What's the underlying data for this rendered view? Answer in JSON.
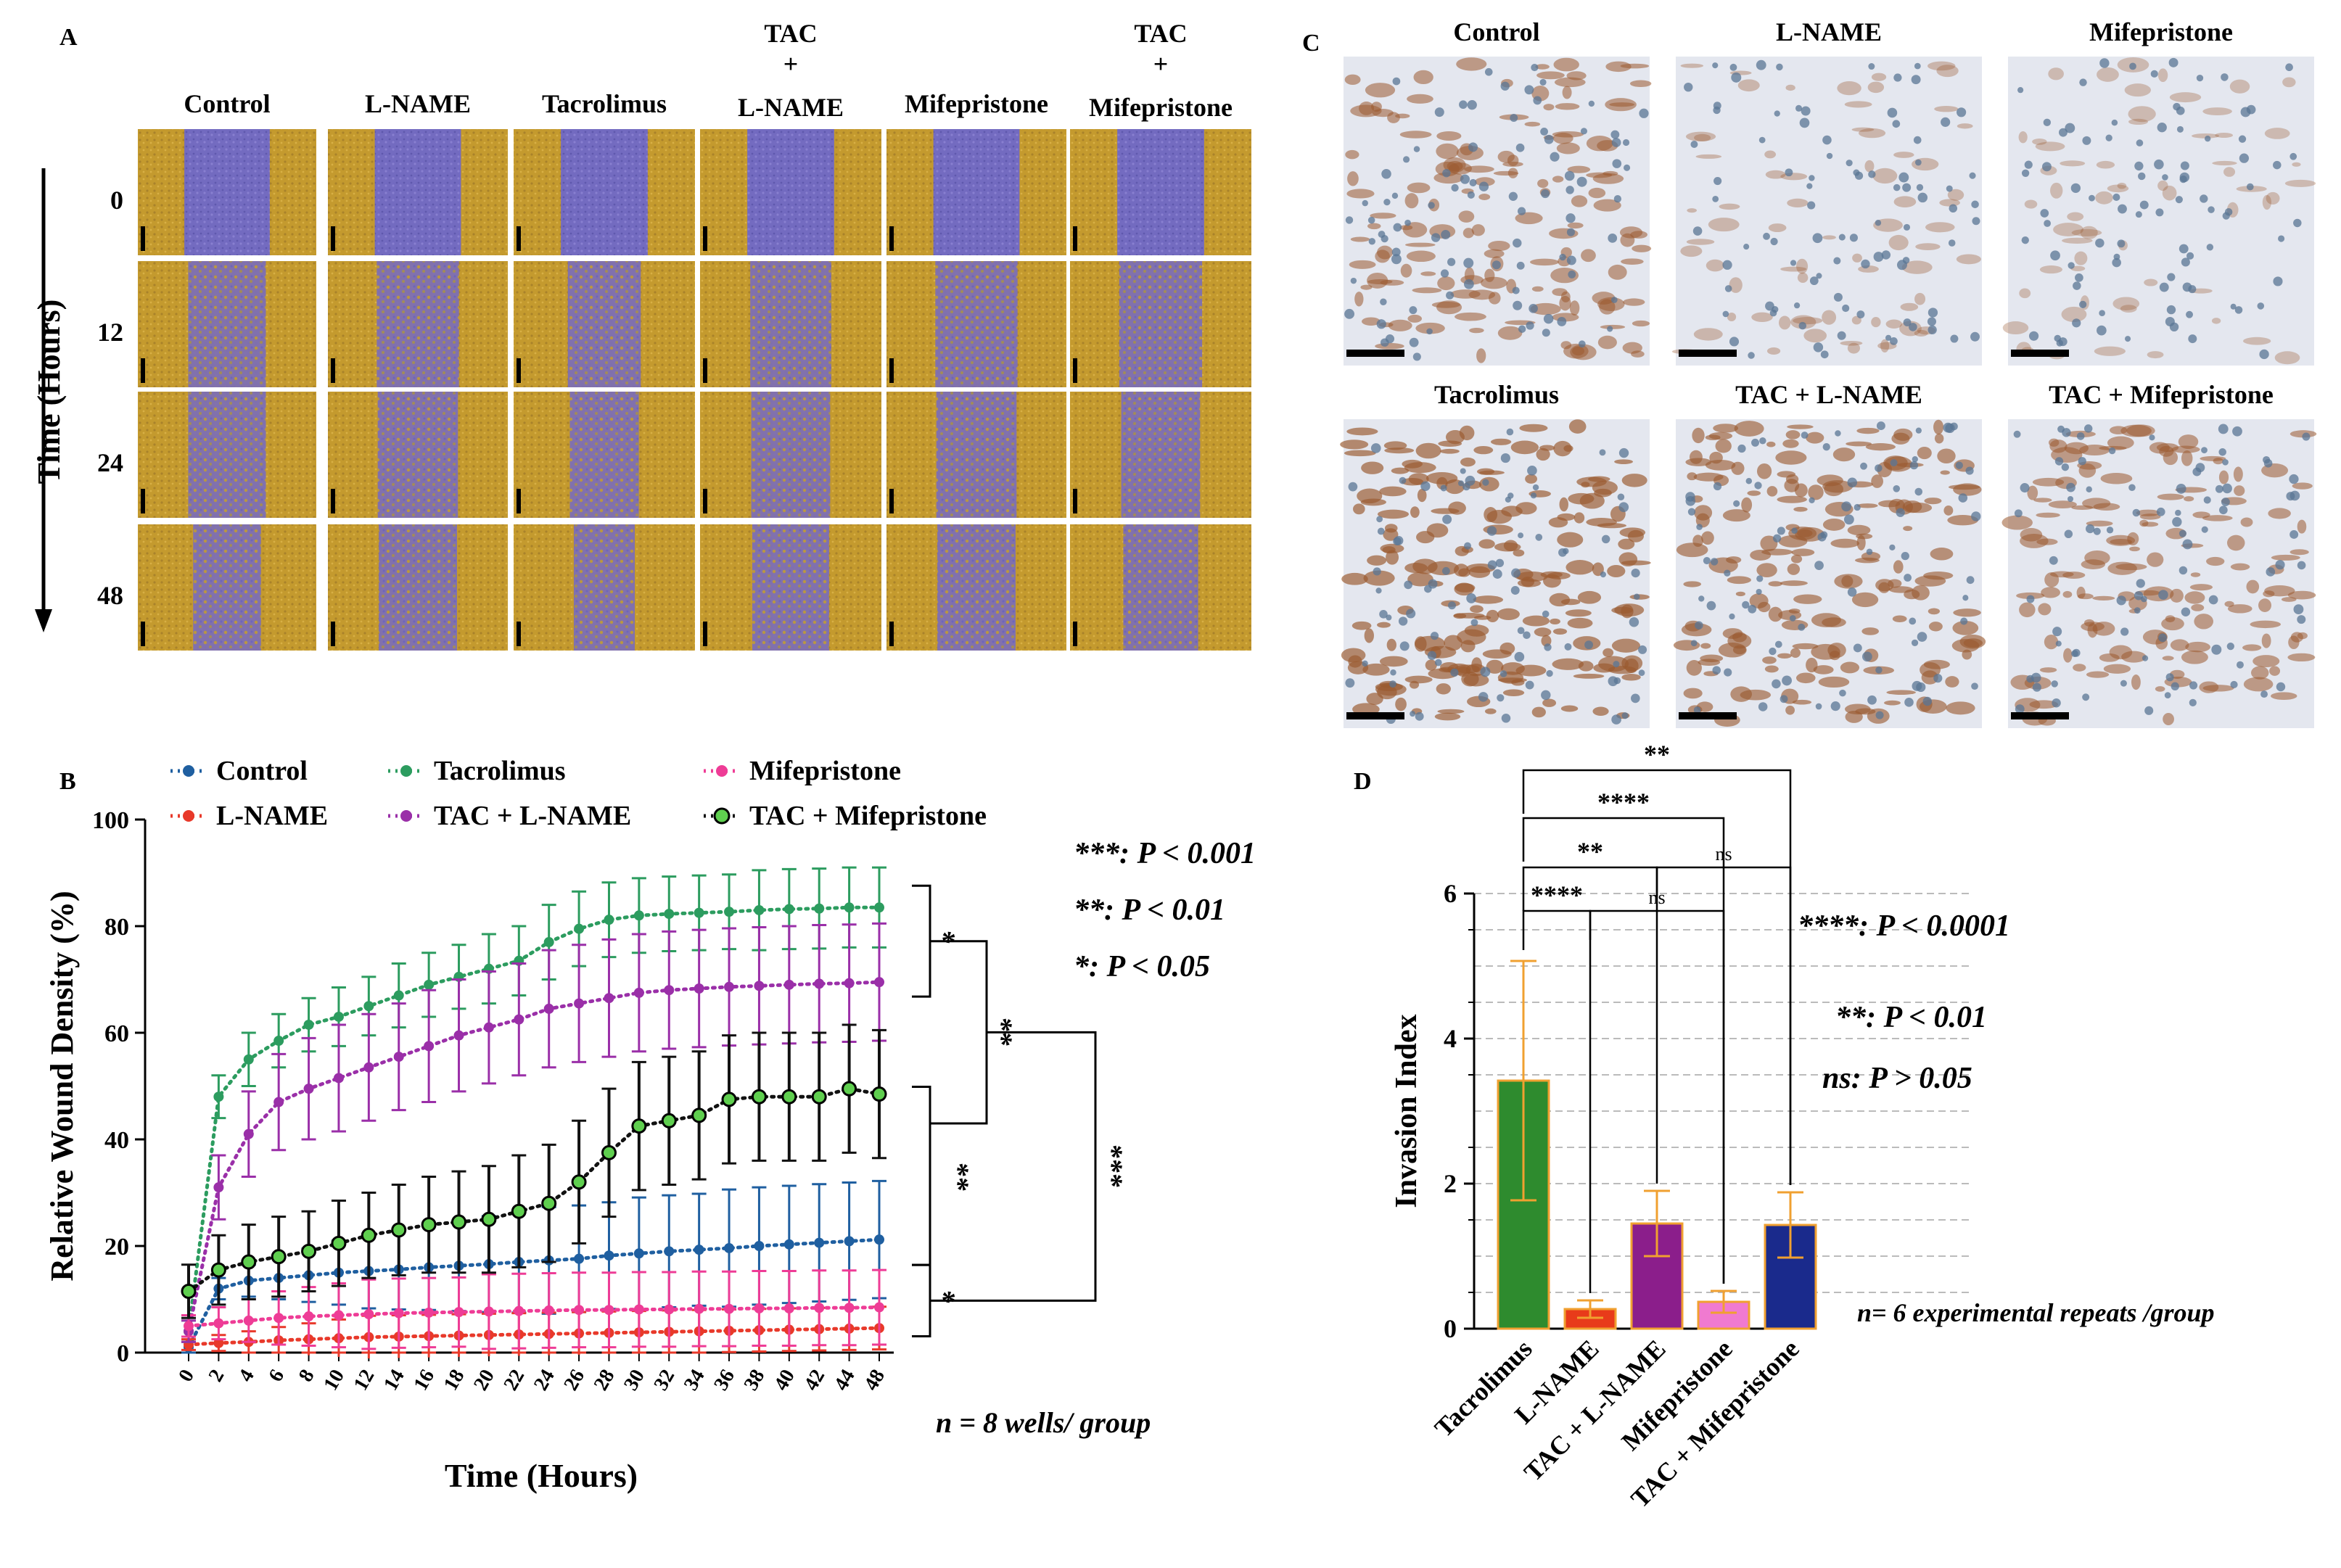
{
  "colors": {
    "scratch_bg": "#c49a2e",
    "scratch_wound": "#6f68c8",
    "ihc_bg": "#dfe3ec",
    "control": "#1f5fa0",
    "lname": "#e8392a",
    "tacrolimus": "#2c9c5f",
    "tac_lname": "#9a2fa8",
    "mifepristone": "#ee3c96",
    "tac_mife": "#111111"
  },
  "panel_a": {
    "label": "A",
    "columns": [
      {
        "line1": "Control",
        "line2": "",
        "line3": ""
      },
      {
        "line1": "L-NAME",
        "line2": "",
        "line3": ""
      },
      {
        "line1": "Tacrolimus",
        "line2": "",
        "line3": ""
      },
      {
        "line1": "TAC",
        "line2": "+",
        "line3": "L-NAME"
      },
      {
        "line1": "Mifepristone",
        "line2": "",
        "line3": ""
      },
      {
        "line1": "TAC",
        "line2": "+",
        "line3": "Mifepristone"
      }
    ],
    "rows": [
      "0",
      "12",
      "24",
      "48"
    ],
    "axis_title": "Time (Hours)",
    "wound_fraction": [
      [
        0.78,
        0.7,
        0.7,
        0.6
      ],
      [
        0.78,
        0.74,
        0.72,
        0.7
      ],
      [
        0.78,
        0.64,
        0.6,
        0.52
      ],
      [
        0.78,
        0.72,
        0.7,
        0.68
      ],
      [
        0.78,
        0.74,
        0.72,
        0.7
      ],
      [
        0.78,
        0.74,
        0.7,
        0.66
      ]
    ]
  },
  "panel_c": {
    "label": "C",
    "images": [
      {
        "title": "Control",
        "stain": 0.6
      },
      {
        "title": "L-NAME",
        "stain": 0.2
      },
      {
        "title": "Mifepristone",
        "stain": 0.15
      },
      {
        "title": "Tacrolimus",
        "stain": 0.85
      },
      {
        "title": "TAC + L-NAME",
        "stain": 0.75
      },
      {
        "title": "TAC + Mifepristone",
        "stain": 0.6
      }
    ]
  },
  "chart_data": [
    {
      "panel": "B",
      "type": "line",
      "xlabel": "Time (Hours)",
      "ylabel": "Relative Wound Density (%)",
      "x": [
        0,
        2,
        4,
        6,
        8,
        10,
        12,
        14,
        16,
        18,
        20,
        22,
        24,
        26,
        28,
        30,
        32,
        34,
        36,
        38,
        40,
        42,
        44,
        48
      ],
      "ylim": [
        0,
        100
      ],
      "yticks": [
        0,
        20,
        40,
        60,
        80,
        100
      ],
      "series": [
        {
          "name": "Control",
          "color_key": "control",
          "values": [
            1,
            12,
            13.5,
            14,
            14.5,
            15,
            15.3,
            15.6,
            16,
            16.3,
            16.6,
            17,
            17.3,
            17.6,
            18.2,
            18.6,
            19,
            19.3,
            19.6,
            20,
            20.3,
            20.6,
            20.9,
            21.2
          ],
          "err": [
            1,
            2,
            3,
            4,
            5,
            6,
            7,
            7.5,
            8,
            8.5,
            9,
            9.5,
            10,
            10,
            10,
            10.5,
            10.5,
            10.5,
            11,
            11,
            11,
            11,
            11,
            11
          ]
        },
        {
          "name": "L-NAME",
          "color_key": "lname",
          "values": [
            1.5,
            1.8,
            2,
            2.3,
            2.5,
            2.7,
            2.9,
            3,
            3.1,
            3.2,
            3.3,
            3.4,
            3.5,
            3.6,
            3.7,
            3.8,
            3.9,
            4,
            4.1,
            4.2,
            4.3,
            4.4,
            4.5,
            4.6
          ],
          "err": [
            1,
            1.5,
            2,
            2.5,
            3,
            3.5,
            4,
            4,
            4,
            4,
            4,
            4,
            4,
            4,
            4,
            4,
            4,
            4,
            4,
            4,
            4,
            4,
            4,
            4
          ]
        },
        {
          "name": "Tacrolimus",
          "color_key": "tacrolimus",
          "values": [
            4,
            48,
            55,
            58.5,
            61.5,
            63,
            65,
            67,
            69,
            70.5,
            72,
            73.5,
            77,
            79.5,
            81.2,
            82,
            82.3,
            82.5,
            82.7,
            83,
            83.2,
            83.3,
            83.5,
            83.5
          ],
          "err": [
            2,
            4,
            5,
            5,
            5,
            5.5,
            5.5,
            6,
            6,
            6,
            6.5,
            6.5,
            7,
            7,
            7,
            7,
            7,
            7,
            7,
            7.5,
            7.5,
            7.5,
            7.5,
            7.5
          ]
        },
        {
          "name": "TAC + L-NAME",
          "color_key": "tac_lname",
          "values": [
            4,
            31,
            41,
            47,
            49.5,
            51.5,
            53.5,
            55.5,
            57.5,
            59.5,
            61,
            62.5,
            64.5,
            65.5,
            66.5,
            67.5,
            68,
            68.3,
            68.6,
            68.8,
            69,
            69.2,
            69.3,
            69.5
          ],
          "err": [
            2,
            6,
            8,
            9,
            9.5,
            10,
            10,
            10,
            10.5,
            10.5,
            10.5,
            10.5,
            11,
            11,
            11,
            11,
            11,
            11,
            11,
            11,
            11,
            11,
            11,
            11
          ]
        },
        {
          "name": "Mifepristone",
          "color_key": "mifepristone",
          "values": [
            5,
            5.5,
            6,
            6.5,
            6.8,
            7,
            7.2,
            7.4,
            7.5,
            7.6,
            7.7,
            7.8,
            7.9,
            8,
            8,
            8.1,
            8.1,
            8.2,
            8.2,
            8.3,
            8.3,
            8.4,
            8.4,
            8.5
          ],
          "err": [
            2,
            3,
            4,
            5,
            5.5,
            6,
            6.5,
            6.5,
            6.5,
            6.5,
            7,
            7,
            7,
            7,
            7,
            7,
            7,
            7,
            7,
            7,
            7,
            7,
            7,
            7
          ]
        },
        {
          "name": "TAC + Mifepristone",
          "color_key": "tac_mife",
          "values": [
            11.5,
            15.5,
            17,
            18,
            19,
            20.5,
            22,
            23,
            24,
            24.5,
            25,
            26.5,
            28,
            32,
            37.5,
            42.5,
            43.5,
            44.5,
            47.5,
            48,
            48,
            48,
            49.5,
            48.5
          ],
          "err": [
            5,
            6.5,
            7,
            7.5,
            7.5,
            8,
            8,
            8.5,
            9,
            9.5,
            10,
            10.5,
            11,
            11.5,
            12,
            12,
            12,
            12,
            12,
            12,
            12,
            12,
            12,
            12
          ]
        }
      ],
      "legend_order": [
        0,
        2,
        4,
        1,
        3,
        5
      ],
      "comparisons": [
        {
          "a": 2,
          "b": 3,
          "label": "*"
        },
        {
          "a": 3,
          "b": 5,
          "label": "**"
        },
        {
          "a": 5,
          "b": 0,
          "label": "*"
        },
        {
          "a": 2,
          "b": 5,
          "label": "**"
        },
        {
          "a": 5,
          "b": 4,
          "label": "***"
        }
      ],
      "sig_key": [
        "***: P < 0.001",
        "**: P < 0.01",
        "*: P < 0.05"
      ],
      "footnote": "n = 8 wells/ group"
    },
    {
      "panel": "D",
      "type": "bar",
      "ylabel": "Invasion Index",
      "categories": [
        "Tacrolimus",
        "L-NAME",
        "TAC + L-NAME",
        "Mifepristone",
        "TAC + Mifepristone"
      ],
      "values": [
        3.42,
        0.27,
        1.45,
        0.37,
        1.43
      ],
      "err": [
        1.65,
        0.12,
        0.45,
        0.15,
        0.45
      ],
      "color_keys": [
        "tacrolimus",
        "lname",
        "tac_lname",
        "mifepristone",
        "tac_mife_bar"
      ],
      "bar_colors": [
        "#2e8b2e",
        "#e83b1a",
        "#8b1e8b",
        "#f07ad0",
        "#1a2a8c"
      ],
      "ylim": [
        0,
        6
      ],
      "yticks": [
        0,
        2,
        4,
        6
      ],
      "brackets": [
        {
          "a": 0,
          "b": 1,
          "label": "****",
          "level": 0
        },
        {
          "a": 1,
          "b": 3,
          "label": "ns",
          "level": 0
        },
        {
          "a": 0,
          "b": 2,
          "label": "**",
          "level": 1
        },
        {
          "a": 2,
          "b": 4,
          "label": "ns",
          "level": 1
        },
        {
          "a": 0,
          "b": 3,
          "label": "****",
          "level": 2
        },
        {
          "a": 0,
          "b": 4,
          "label": "**",
          "level": 3
        }
      ],
      "sig_key": [
        "****: P < 0.0001",
        "**: P < 0.01",
        "ns: P > 0.05"
      ],
      "footnote": "n= 6 experimental repeats /group"
    }
  ],
  "panel_labels": {
    "b": "B",
    "d": "D"
  }
}
